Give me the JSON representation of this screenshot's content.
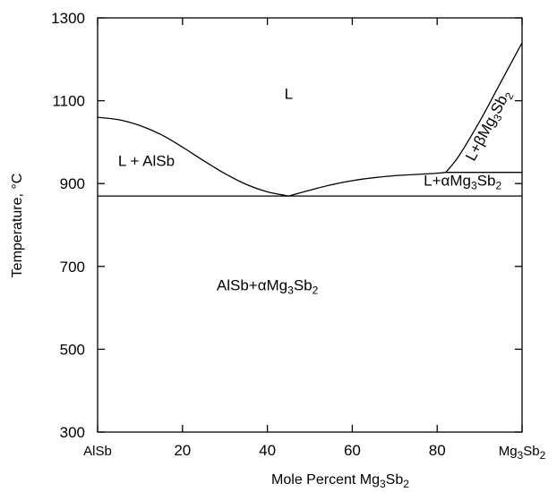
{
  "chart_data": {
    "type": "line",
    "title": "",
    "xlabel": "Mole Percent  Mg3Sb2",
    "xlabel_parts": {
      "main": "Mole Percent  Mg",
      "sub1": "3",
      "mid": "Sb",
      "sub2": "2"
    },
    "ylabel": "Temperature, °C",
    "xlim": [
      0,
      100
    ],
    "ylim": [
      300,
      1300
    ],
    "x_ticks": [
      {
        "value": 0,
        "label": "AlSb"
      },
      {
        "value": 20,
        "label": "20"
      },
      {
        "value": 40,
        "label": "40"
      },
      {
        "value": 60,
        "label": "60"
      },
      {
        "value": 80,
        "label": "80"
      },
      {
        "value": 100,
        "label": "Mg3Sb2",
        "parts": {
          "main": "Mg",
          "sub1": "3",
          "mid": "Sb",
          "sub2": "2"
        }
      }
    ],
    "y_ticks": [
      300,
      500,
      700,
      900,
      1100,
      1300
    ],
    "grid": false,
    "legend": "none",
    "series": [
      {
        "x": [
          0,
          5,
          10,
          15,
          20,
          25,
          30,
          35,
          40,
          45
        ],
        "y": [
          1060,
          1054,
          1040,
          1018,
          988,
          955,
          924,
          898,
          880,
          870
        ]
      },
      {
        "x": [
          45,
          50,
          55,
          60,
          65,
          70,
          75,
          80,
          82
        ],
        "y": [
          870,
          884,
          897,
          907,
          914,
          919,
          922,
          925,
          927
        ]
      },
      {
        "x": [
          82,
          85,
          90,
          95,
          100
        ],
        "y": [
          927,
          965,
          1050,
          1145,
          1240
        ]
      },
      {
        "x": [
          0,
          100
        ],
        "y": [
          870,
          870
        ]
      },
      {
        "x": [
          82,
          100
        ],
        "y": [
          927,
          927
        ]
      }
    ],
    "region_labels": [
      {
        "id": "liquid",
        "text": "L",
        "x": 45,
        "y": 1105
      },
      {
        "id": "l-alsb",
        "text": "L + AlSb",
        "x": 11.5,
        "y": 943
      },
      {
        "id": "l-alpha",
        "text": "L+αMg3Sb2",
        "parts": {
          "main": "L+αMg",
          "sub1": "3",
          "mid": "Sb",
          "sub2": "2"
        },
        "x": 86,
        "y": 895
      },
      {
        "id": "l-beta",
        "text": "L+βMg3Sb2",
        "parts": {
          "main": "L+βMg",
          "sub1": "3",
          "mid": "Sb",
          "sub2": "2"
        },
        "x": 93,
        "y": 1035,
        "rotate": -62
      },
      {
        "id": "solid",
        "text": "AlSb+αMg3Sb2",
        "parts": {
          "main": "AlSb+αMg",
          "sub1": "3",
          "mid": "Sb",
          "sub2": "2"
        },
        "x": 40,
        "y": 642
      }
    ]
  }
}
